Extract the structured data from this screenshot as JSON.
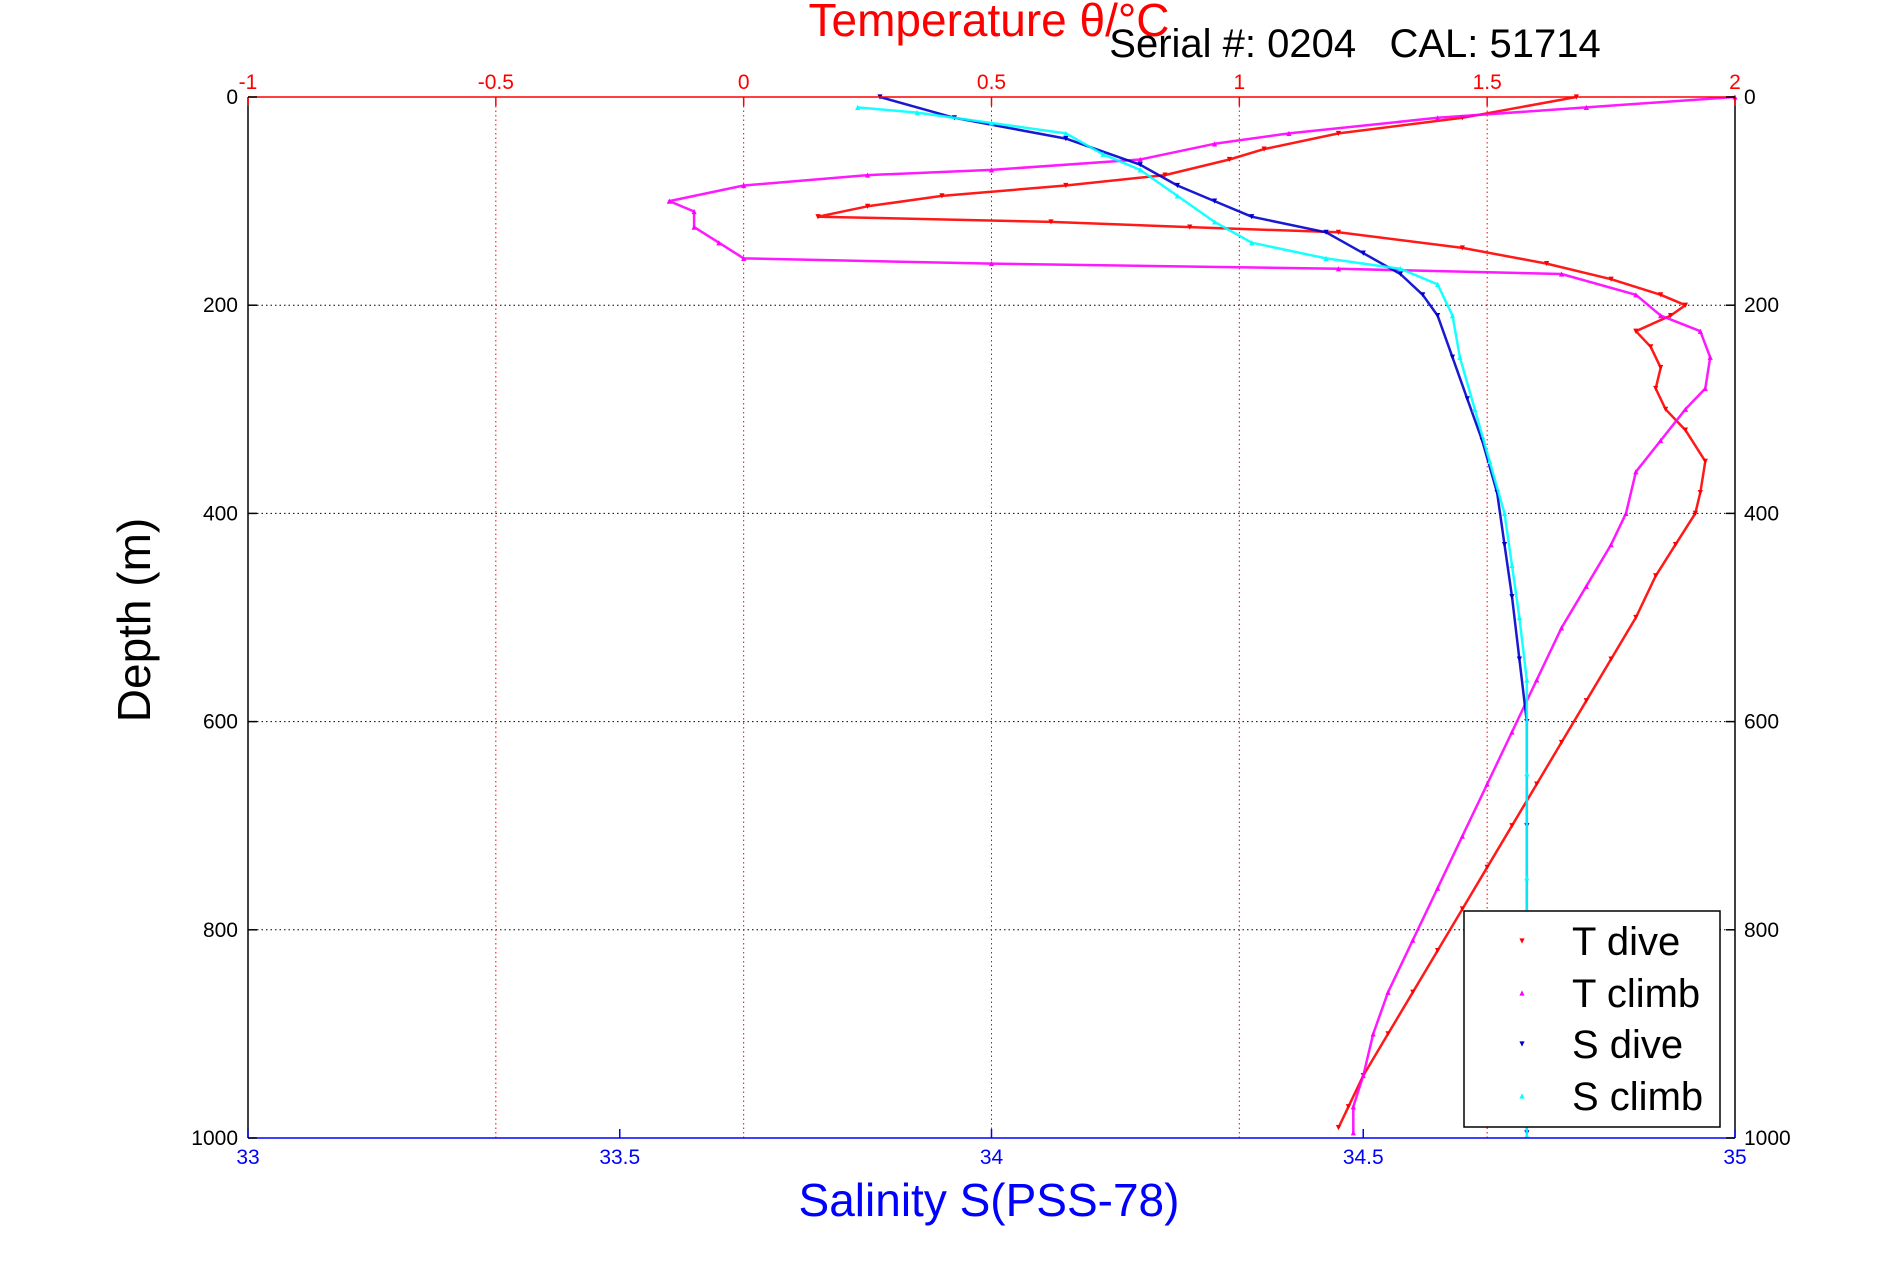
{
  "colors": {
    "temperature_axis": "#ff0000",
    "salinity_axis": "#0000ff",
    "depth_axis": "#000000",
    "t_dive": "#ff0000",
    "t_climb": "#ff00ff",
    "s_dive": "#0000cc",
    "s_climb": "#00ffff",
    "grid": "#000000",
    "background": "#ffffff"
  },
  "chart_data": {
    "type": "scatter",
    "title": "Temperature θ/°C",
    "subtitle": "Serial #: 0204   CAL: 51714",
    "xlabel_bottom": "Salinity S(PSS-78)",
    "xlabel_top": "Temperature θ/°C",
    "ylabel": "Depth (m)",
    "ylim": [
      1000,
      0
    ],
    "xlim_salinity": [
      33,
      35
    ],
    "xlim_temperature": [
      -1,
      2
    ],
    "yticks": [
      0,
      200,
      400,
      600,
      800,
      1000
    ],
    "ytick_labels": [
      "0",
      "200",
      "400",
      "600",
      "800",
      "1000"
    ],
    "yticks_right": [
      0,
      200,
      400,
      600,
      800,
      1000
    ],
    "ytick_labels_right": [
      "0",
      "200",
      "400",
      "600",
      "800",
      "1000"
    ],
    "xticks_salinity": [
      33,
      33.5,
      34,
      34.5,
      35
    ],
    "xtick_labels_salinity": [
      "33",
      "33.5",
      "34",
      "34.5",
      "35"
    ],
    "xticks_temperature": [
      -1,
      -0.5,
      0,
      0.5,
      1,
      1.5,
      2
    ],
    "xtick_labels_temperature": [
      "-1",
      "-0.5",
      "0",
      "0.5",
      "1",
      "1.5",
      "2"
    ],
    "grid": true,
    "legend_position": "bottom-right",
    "legend": [
      "T dive",
      "T climb",
      "S dive",
      "S climb"
    ],
    "series": [
      {
        "name": "T dive",
        "axis": "temperature",
        "marker": "triangle-down",
        "points": [
          [
            1.68,
            0
          ],
          [
            1.45,
            20
          ],
          [
            1.2,
            35
          ],
          [
            1.05,
            50
          ],
          [
            0.98,
            60
          ],
          [
            0.85,
            75
          ],
          [
            0.65,
            85
          ],
          [
            0.4,
            95
          ],
          [
            0.25,
            105
          ],
          [
            0.15,
            115
          ],
          [
            0.62,
            120
          ],
          [
            0.9,
            125
          ],
          [
            1.2,
            130
          ],
          [
            1.45,
            145
          ],
          [
            1.62,
            160
          ],
          [
            1.75,
            175
          ],
          [
            1.85,
            190
          ],
          [
            1.9,
            200
          ],
          [
            1.87,
            210
          ],
          [
            1.8,
            225
          ],
          [
            1.83,
            240
          ],
          [
            1.85,
            260
          ],
          [
            1.84,
            280
          ],
          [
            1.86,
            300
          ],
          [
            1.9,
            320
          ],
          [
            1.94,
            350
          ],
          [
            1.93,
            380
          ],
          [
            1.92,
            400
          ],
          [
            1.88,
            430
          ],
          [
            1.84,
            460
          ],
          [
            1.8,
            500
          ],
          [
            1.75,
            540
          ],
          [
            1.7,
            580
          ],
          [
            1.65,
            620
          ],
          [
            1.6,
            660
          ],
          [
            1.55,
            700
          ],
          [
            1.5,
            740
          ],
          [
            1.45,
            780
          ],
          [
            1.4,
            820
          ],
          [
            1.35,
            860
          ],
          [
            1.3,
            900
          ],
          [
            1.25,
            940
          ],
          [
            1.22,
            970
          ],
          [
            1.2,
            990
          ]
        ]
      },
      {
        "name": "T climb",
        "axis": "temperature",
        "marker": "triangle-up",
        "points": [
          [
            2.0,
            0
          ],
          [
            1.7,
            10
          ],
          [
            1.4,
            20
          ],
          [
            1.1,
            35
          ],
          [
            0.95,
            45
          ],
          [
            0.8,
            60
          ],
          [
            0.5,
            70
          ],
          [
            0.25,
            75
          ],
          [
            0.0,
            85
          ],
          [
            -0.15,
            100
          ],
          [
            -0.1,
            110
          ],
          [
            -0.1,
            125
          ],
          [
            -0.05,
            140
          ],
          [
            0.0,
            155
          ],
          [
            0.5,
            160
          ],
          [
            1.2,
            165
          ],
          [
            1.65,
            170
          ],
          [
            1.8,
            190
          ],
          [
            1.85,
            210
          ],
          [
            1.93,
            225
          ],
          [
            1.95,
            250
          ],
          [
            1.94,
            280
          ],
          [
            1.9,
            300
          ],
          [
            1.85,
            330
          ],
          [
            1.8,
            360
          ],
          [
            1.78,
            400
          ],
          [
            1.75,
            430
          ],
          [
            1.7,
            470
          ],
          [
            1.65,
            510
          ],
          [
            1.6,
            560
          ],
          [
            1.55,
            610
          ],
          [
            1.5,
            660
          ],
          [
            1.45,
            710
          ],
          [
            1.4,
            760
          ],
          [
            1.35,
            810
          ],
          [
            1.3,
            860
          ],
          [
            1.27,
            900
          ],
          [
            1.25,
            940
          ],
          [
            1.23,
            970
          ],
          [
            1.23,
            995
          ]
        ]
      },
      {
        "name": "S dive",
        "axis": "salinity",
        "marker": "triangle-down",
        "points": [
          [
            33.85,
            0
          ],
          [
            33.95,
            20
          ],
          [
            34.1,
            40
          ],
          [
            34.2,
            65
          ],
          [
            34.25,
            85
          ],
          [
            34.3,
            100
          ],
          [
            34.35,
            115
          ],
          [
            34.45,
            130
          ],
          [
            34.5,
            150
          ],
          [
            34.55,
            170
          ],
          [
            34.58,
            190
          ],
          [
            34.6,
            210
          ],
          [
            34.62,
            250
          ],
          [
            34.64,
            290
          ],
          [
            34.66,
            330
          ],
          [
            34.68,
            380
          ],
          [
            34.69,
            430
          ],
          [
            34.7,
            480
          ],
          [
            34.71,
            540
          ],
          [
            34.72,
            600
          ],
          [
            34.72,
            700
          ],
          [
            34.72,
            800
          ],
          [
            34.72,
            900
          ],
          [
            34.72,
            995
          ]
        ]
      },
      {
        "name": "S climb",
        "axis": "salinity",
        "marker": "triangle-up",
        "points": [
          [
            33.82,
            10
          ],
          [
            33.9,
            15
          ],
          [
            34.0,
            25
          ],
          [
            34.1,
            35
          ],
          [
            34.15,
            55
          ],
          [
            34.2,
            70
          ],
          [
            34.25,
            95
          ],
          [
            34.3,
            120
          ],
          [
            34.35,
            140
          ],
          [
            34.45,
            155
          ],
          [
            34.55,
            165
          ],
          [
            34.6,
            180
          ],
          [
            34.62,
            210
          ],
          [
            34.63,
            250
          ],
          [
            34.65,
            300
          ],
          [
            34.67,
            350
          ],
          [
            34.69,
            400
          ],
          [
            34.7,
            450
          ],
          [
            34.71,
            500
          ],
          [
            34.72,
            560
          ],
          [
            34.72,
            650
          ],
          [
            34.72,
            750
          ],
          [
            34.72,
            850
          ],
          [
            34.72,
            950
          ],
          [
            34.72,
            998
          ]
        ]
      }
    ]
  }
}
